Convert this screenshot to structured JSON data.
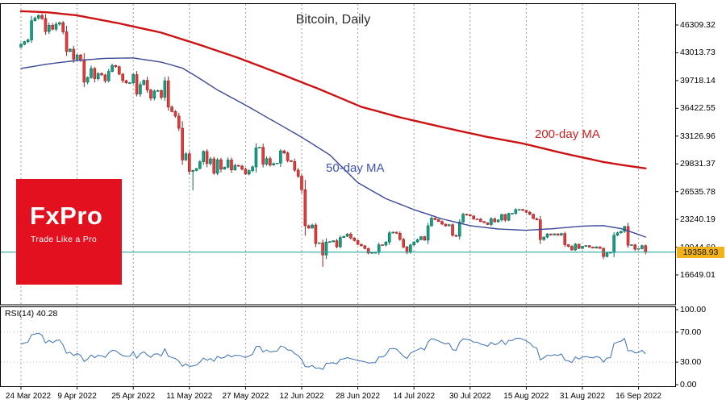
{
  "title": "Bitcoin, Daily",
  "rsi_label": "RSI(14) 40.28",
  "logo": {
    "name": "FxPro",
    "tagline": "Trade Like a Pro",
    "bg_color": "#e3101f",
    "text_color": "#ffffff"
  },
  "overlay_labels": {
    "ma200": "200-day MA",
    "ma50": "50-day MA",
    "ma200_color": "#cc1f1f",
    "ma50_color": "#3f51b5"
  },
  "price_axis": {
    "ticks": [
      "46309.32",
      "43013.73",
      "39718.14",
      "36422.55",
      "33126.96",
      "29831.37",
      "26535.78",
      "23240.19",
      "19944.60",
      "16649.01"
    ],
    "current_price": "19358.93",
    "tag_bg": "#f2b31a",
    "tag_text_color": "#161616"
  },
  "rsi_axis": {
    "ticks": [
      "100.00",
      "70.00",
      "30.00",
      "0.00"
    ]
  },
  "x_axis": {
    "tick_labels": [
      "24 Mar 2022",
      "9 Apr 2022",
      "25 Apr 2022",
      "11 May 2022",
      "27 May 2022",
      "12 Jun 2022",
      "28 Jun 2022",
      "14 Jul 2022",
      "30 Jul 2022",
      "15 Aug 2022",
      "31 Aug 2022",
      "16 Sep 2022"
    ],
    "tick_day_indices": [
      0,
      16,
      32,
      48,
      64,
      80,
      96,
      112,
      128,
      144,
      160,
      176
    ]
  },
  "chart_data": {
    "type": "candlestick",
    "title": "Bitcoin, Daily",
    "timeframe": "Daily",
    "start_date": "24 Mar 2022",
    "end_date": "18 Sep 2022",
    "y_axis_range": [
      13109,
      48893
    ],
    "y_ticks": [
      46309.32,
      43013.73,
      39718.14,
      36422.55,
      33126.96,
      29831.37,
      26535.78,
      23240.19,
      19944.6,
      16649.01
    ],
    "grid": "vertical-dashed",
    "grid_color": "#9b9b9b",
    "first_open": 43700,
    "closes": [
      44013,
      44331,
      44538,
      46821,
      47122,
      47434,
      47078,
      45528,
      46283,
      45811,
      46407,
      46580,
      45497,
      43170,
      43444,
      42252,
      42753,
      42158,
      39530,
      40074,
      41147,
      39935,
      40551,
      40378,
      39678,
      40801,
      41493,
      41358,
      40480,
      39709,
      39441,
      39450,
      40426,
      38112,
      39235,
      39742,
      38596,
      37630,
      38468,
      38525,
      37728,
      39690,
      36575,
      36040,
      35501,
      34059,
      30296,
      31022,
      28936,
      29047,
      29283,
      30086,
      31305,
      29862,
      30425,
      28720,
      30314,
      29200,
      29432,
      30293,
      29109,
      29655,
      29562,
      29201,
      28622,
      29027,
      29468,
      31726,
      31792,
      29799,
      30452,
      29700,
      29864,
      29919,
      31373,
      31125,
      30205,
      30111,
      29083,
      28360,
      26762,
      22487,
      22206,
      22572,
      20381,
      20471,
      19017,
      20553,
      20599,
      20710,
      19987,
      21085,
      21231,
      21502,
      21027,
      20735,
      20280,
      20104,
      19784,
      19242,
      19297,
      19314,
      20231,
      20190,
      20548,
      21637,
      21731,
      21592,
      20860,
      19970,
      19323,
      20212,
      20569,
      20836,
      21190,
      20781,
      22485,
      23389,
      23231,
      22987,
      22690,
      22465,
      22609,
      21361,
      21239,
      22930,
      23843,
      23773,
      23644,
      23293,
      23271,
      22978,
      22846,
      22630,
      23312,
      22954,
      23175,
      23810,
      23150,
      23947,
      23957,
      24402,
      24424,
      24312,
      24095,
      23854,
      23342,
      23191,
      20838,
      21140,
      21516,
      21398,
      21528,
      21368,
      21559,
      20241,
      20038,
      19616,
      20298,
      19796,
      20050,
      20130,
      19952,
      19832,
      19987,
      19794,
      18837,
      19290,
      19320,
      21358,
      21648,
      21827,
      22395,
      20173,
      20226,
      19701,
      19772,
      20115,
      19358.93
    ],
    "low_overrides": {
      "49": 26700,
      "86": 17610
    },
    "current_price": 19358.93,
    "horizontal_line": {
      "value": 19358.93,
      "color": "#2aa8a0"
    },
    "candle_colors": {
      "up_fill": "#12a184",
      "up_border": "#0a6b55",
      "down_fill": "#e13d3d",
      "down_border": "#9c1f1f"
    },
    "moving_averages": [
      {
        "name": "200-day MA",
        "color": "#cc1212",
        "stroke_width": 2.4,
        "anchors": [
          [
            0,
            47950
          ],
          [
            8,
            47800
          ],
          [
            16,
            47450
          ],
          [
            28,
            46500
          ],
          [
            40,
            45400
          ],
          [
            51,
            43950
          ],
          [
            62,
            42400
          ],
          [
            74,
            40500
          ],
          [
            85,
            38700
          ],
          [
            97,
            36600
          ],
          [
            108,
            35350
          ],
          [
            120,
            34200
          ],
          [
            132,
            33100
          ],
          [
            143,
            32250
          ],
          [
            155,
            31050
          ],
          [
            166,
            30050
          ],
          [
            172,
            29650
          ],
          [
            178,
            29300
          ]
        ]
      },
      {
        "name": "50-day MA",
        "color": "#3b4898",
        "stroke_width": 1.4,
        "anchors": [
          [
            0,
            41150
          ],
          [
            8,
            41700
          ],
          [
            16,
            42100
          ],
          [
            24,
            42350
          ],
          [
            32,
            42400
          ],
          [
            40,
            41900
          ],
          [
            46,
            41200
          ],
          [
            50,
            40200
          ],
          [
            56,
            38600
          ],
          [
            64,
            36800
          ],
          [
            72,
            34900
          ],
          [
            80,
            33000
          ],
          [
            88,
            30900
          ],
          [
            96,
            27600
          ],
          [
            104,
            25700
          ],
          [
            112,
            24400
          ],
          [
            120,
            23300
          ],
          [
            128,
            22500
          ],
          [
            136,
            22100
          ],
          [
            144,
            21950
          ],
          [
            152,
            22150
          ],
          [
            160,
            22450
          ],
          [
            166,
            22500
          ],
          [
            171,
            22150
          ],
          [
            175,
            21600
          ],
          [
            178,
            21150
          ]
        ]
      }
    ],
    "rsi": {
      "period": 14,
      "current": 40.28,
      "color": "#3a6fb5",
      "levels": [
        30,
        70
      ],
      "axis_range": [
        0,
        100
      ]
    }
  }
}
